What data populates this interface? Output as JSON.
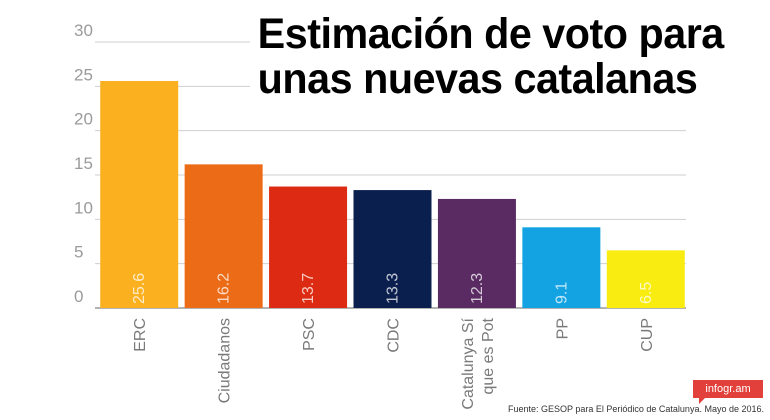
{
  "title": {
    "line1": "Estimación de voto para",
    "line2": "unas nuevas catalanas"
  },
  "badge": "infogr.am",
  "source": "Fuente:  GESOP para El Periódico de Catalunya. Mayo de 2016.",
  "chart_data": {
    "type": "bar",
    "title": "Estimación de voto para unas nuevas catalanas",
    "categories": [
      [
        "ERC"
      ],
      [
        "Ciudadanos"
      ],
      [
        "PSC"
      ],
      [
        "CDC"
      ],
      [
        "Catalunya Sí",
        "que es Pot"
      ],
      [
        "PP"
      ],
      [
        "CUP"
      ]
    ],
    "values": [
      25.6,
      16.2,
      13.7,
      13.3,
      12.3,
      9.1,
      6.5
    ],
    "value_labels": [
      "25.6",
      "16.2",
      "13.7",
      "13.3",
      "12.3",
      "9.1",
      "6.5"
    ],
    "colors": [
      "#fbb020",
      "#ec6b16",
      "#dc2b12",
      "#0a1f4e",
      "#5a2a63",
      "#13a3e3",
      "#f8ec10"
    ],
    "yticks": [
      0,
      5,
      10,
      15,
      20,
      25,
      30
    ],
    "ylim": [
      0,
      30
    ],
    "grid": true,
    "legend": "none"
  }
}
